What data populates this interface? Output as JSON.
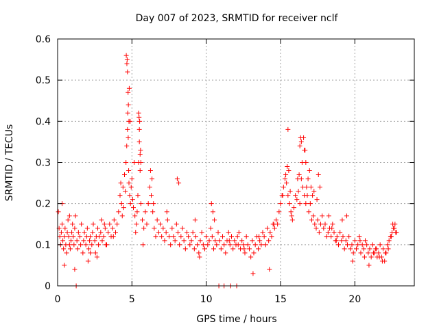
{
  "chart_data": {
    "type": "scatter",
    "title": "Day 007 of 2023, SRMTID for receiver nclf",
    "xlabel": "GPS time / hours",
    "ylabel": "SRMTID / TECUs",
    "xlim": [
      0,
      24
    ],
    "ylim": [
      0,
      0.6
    ],
    "xticks": [
      0,
      5,
      10,
      15,
      20
    ],
    "xtick_labels": [
      "0",
      "5",
      "10",
      "15",
      "20"
    ],
    "yticks": [
      0,
      0.1,
      0.2,
      0.3,
      0.4,
      0.5,
      0.6
    ],
    "ytick_labels": [
      "0",
      "0.1",
      "0.2",
      "0.3",
      "0.4",
      "0.5",
      "0.6"
    ],
    "grid": true,
    "marker": "+",
    "series": [
      {
        "name": "SRMTID",
        "color": "#ff0000",
        "x": [
          0.05,
          0.1,
          0.15,
          0.2,
          0.25,
          0.3,
          0.35,
          0.4,
          0.45,
          0.5,
          0.55,
          0.6,
          0.65,
          0.7,
          0.75,
          0.8,
          0.85,
          0.9,
          0.95,
          1.0,
          1.05,
          1.1,
          1.15,
          1.2,
          1.3,
          1.35,
          1.4,
          1.5,
          1.55,
          1.6,
          1.7,
          1.75,
          1.8,
          1.9,
          1.95,
          2.0,
          2.1,
          2.15,
          2.2,
          2.3,
          2.35,
          2.4,
          2.5,
          2.55,
          2.6,
          2.7,
          2.75,
          2.8,
          2.9,
          2.95,
          3.0,
          3.1,
          3.2,
          3.3,
          3.4,
          3.5,
          3.6,
          3.7,
          3.8,
          3.9,
          4.0,
          4.1,
          4.2,
          4.25,
          4.3,
          4.4,
          4.5,
          4.55,
          4.6,
          4.65,
          4.7,
          4.72,
          4.75,
          4.78,
          4.8,
          4.85,
          4.9,
          4.95,
          5.0,
          5.05,
          5.1,
          5.2,
          5.3,
          5.35,
          5.4,
          5.45,
          5.5,
          5.55,
          5.6,
          5.7,
          5.8,
          5.9,
          6.0,
          6.1,
          6.2,
          6.3,
          6.4,
          6.5,
          6.6,
          6.7,
          6.8,
          6.9,
          7.0,
          7.1,
          7.2,
          7.3,
          7.4,
          7.5,
          7.6,
          7.7,
          7.8,
          7.9,
          8.0,
          8.1,
          8.2,
          8.3,
          8.4,
          8.5,
          8.6,
          8.7,
          8.8,
          8.9,
          9.0,
          9.1,
          9.2,
          9.3,
          9.4,
          9.5,
          9.6,
          9.7,
          9.8,
          9.9,
          10.0,
          10.1,
          10.2,
          10.3,
          10.4,
          10.5,
          10.6,
          10.7,
          10.8,
          10.9,
          11.0,
          11.1,
          11.2,
          11.3,
          11.4,
          11.5,
          11.6,
          11.7,
          11.8,
          11.9,
          12.0,
          12.1,
          12.2,
          12.3,
          12.4,
          12.5,
          12.6,
          12.7,
          12.8,
          12.9,
          13.0,
          13.1,
          13.2,
          13.3,
          13.4,
          13.5,
          13.6,
          13.7,
          13.8,
          13.9,
          14.0,
          14.1,
          14.2,
          14.3,
          14.4,
          14.5,
          14.6,
          14.7,
          14.8,
          14.9,
          15.0,
          15.1,
          15.2,
          15.3,
          15.4,
          15.5,
          15.6,
          15.7,
          15.8,
          15.9,
          16.0,
          16.1,
          16.2,
          16.3,
          16.4,
          16.5,
          16.6,
          16.7,
          16.8,
          16.9,
          17.0,
          17.1,
          17.2,
          17.3,
          17.4,
          17.5,
          17.6,
          17.7,
          17.8,
          17.9,
          18.0,
          18.1,
          18.2,
          18.3,
          18.4,
          18.5,
          18.6,
          18.7,
          18.8,
          18.9,
          19.0,
          19.1,
          19.2,
          19.3,
          19.4,
          19.5,
          19.6,
          19.7,
          19.8,
          19.9,
          20.0,
          20.1,
          20.2,
          20.3,
          20.4,
          20.5,
          20.6,
          20.7,
          20.8,
          20.9,
          21.0,
          21.1,
          21.2,
          21.3,
          21.4,
          21.5,
          21.6,
          21.7,
          21.8,
          21.9,
          22.0,
          22.1,
          22.2,
          22.3,
          22.4,
          22.5,
          22.6,
          22.7,
          22.8,
          0.3,
          0.8,
          1.25,
          2.05,
          2.65,
          3.25,
          3.75,
          4.35,
          4.45,
          4.68,
          4.82,
          4.88,
          5.15,
          5.25,
          5.48,
          5.52,
          5.58,
          5.75,
          6.25,
          6.35,
          6.45,
          7.35,
          8.05,
          8.15,
          9.25,
          10.35,
          10.45,
          10.55,
          11.55,
          12.15,
          12.55,
          13.55,
          14.55,
          15.15,
          15.35,
          15.45,
          15.65,
          15.75,
          16.15,
          16.25,
          16.45,
          16.55,
          16.65,
          16.75,
          16.85,
          16.95,
          17.05,
          17.15,
          17.25,
          17.45,
          17.55,
          17.65,
          18.25,
          18.45,
          18.75,
          19.15,
          19.45,
          20.35,
          21.25,
          21.45,
          21.65,
          21.85,
          22.05,
          22.25,
          22.45,
          22.55,
          22.65,
          22.75,
          0.45,
          1.15,
          11.2,
          10.85,
          11.65,
          12.05,
          3.15,
          13.15,
          14.25,
          19.85,
          20.65,
          4.62,
          4.66,
          4.7,
          4.74,
          4.76,
          4.8,
          5.45,
          5.5,
          5.55,
          5.6,
          16.3,
          16.35,
          16.4,
          15.5,
          15.55,
          16.6,
          16.7,
          2.2,
          9.55,
          20.95
        ],
        "y": [
          0.18,
          0.14,
          0.12,
          0.1,
          0.13,
          0.15,
          0.11,
          0.09,
          0.12,
          0.14,
          0.1,
          0.08,
          0.13,
          0.16,
          0.12,
          0.1,
          0.09,
          0.11,
          0.13,
          0.15,
          0.12,
          0.1,
          0.14,
          0.17,
          0.11,
          0.09,
          0.13,
          0.12,
          0.1,
          0.15,
          0.08,
          0.11,
          0.13,
          0.1,
          0.12,
          0.14,
          0.09,
          0.11,
          0.12,
          0.1,
          0.13,
          0.15,
          0.11,
          0.08,
          0.12,
          0.14,
          0.1,
          0.12,
          0.13,
          0.16,
          0.11,
          0.12,
          0.14,
          0.1,
          0.13,
          0.15,
          0.12,
          0.14,
          0.16,
          0.13,
          0.15,
          0.18,
          0.22,
          0.25,
          0.2,
          0.24,
          0.27,
          0.23,
          0.3,
          0.34,
          0.38,
          0.42,
          0.36,
          0.28,
          0.25,
          0.22,
          0.2,
          0.24,
          0.26,
          0.21,
          0.19,
          0.17,
          0.15,
          0.18,
          0.22,
          0.3,
          0.35,
          0.28,
          0.2,
          0.16,
          0.14,
          0.18,
          0.15,
          0.2,
          0.24,
          0.22,
          0.18,
          0.14,
          0.12,
          0.16,
          0.13,
          0.15,
          0.12,
          0.14,
          0.11,
          0.13,
          0.16,
          0.12,
          0.1,
          0.14,
          0.12,
          0.11,
          0.15,
          0.13,
          0.1,
          0.12,
          0.14,
          0.11,
          0.09,
          0.13,
          0.12,
          0.1,
          0.11,
          0.13,
          0.09,
          0.12,
          0.1,
          0.08,
          0.11,
          0.13,
          0.1,
          0.09,
          0.12,
          0.1,
          0.11,
          0.14,
          0.12,
          0.09,
          0.11,
          0.1,
          0.13,
          0.11,
          0.09,
          0.12,
          0.1,
          0.08,
          0.11,
          0.13,
          0.1,
          0.12,
          0.09,
          0.11,
          0.1,
          0.12,
          0.13,
          0.09,
          0.11,
          0.1,
          0.08,
          0.12,
          0.1,
          0.09,
          0.07,
          0.11,
          0.08,
          0.1,
          0.12,
          0.09,
          0.11,
          0.1,
          0.13,
          0.12,
          0.1,
          0.14,
          0.11,
          0.13,
          0.12,
          0.15,
          0.14,
          0.16,
          0.15,
          0.18,
          0.2,
          0.22,
          0.24,
          0.26,
          0.25,
          0.22,
          0.2,
          0.18,
          0.16,
          0.19,
          0.22,
          0.21,
          0.23,
          0.2,
          0.26,
          0.24,
          0.22,
          0.2,
          0.22,
          0.18,
          0.2,
          0.16,
          0.17,
          0.15,
          0.14,
          0.16,
          0.13,
          0.15,
          0.17,
          0.14,
          0.15,
          0.12,
          0.13,
          0.14,
          0.12,
          0.15,
          0.13,
          0.11,
          0.12,
          0.1,
          0.13,
          0.11,
          0.12,
          0.09,
          0.11,
          0.1,
          0.12,
          0.09,
          0.1,
          0.08,
          0.11,
          0.09,
          0.1,
          0.12,
          0.08,
          0.1,
          0.09,
          0.11,
          0.1,
          0.08,
          0.09,
          0.07,
          0.1,
          0.08,
          0.09,
          0.07,
          0.08,
          0.1,
          0.07,
          0.09,
          0.06,
          0.08,
          0.1,
          0.11,
          0.12,
          0.13,
          0.14,
          0.15,
          0.13,
          0.2,
          0.17,
          0.0,
          0.06,
          0.07,
          0.1,
          0.12,
          0.17,
          0.19,
          0.55,
          0.48,
          0.4,
          0.3,
          0.13,
          0.41,
          0.4,
          0.33,
          0.1,
          0.28,
          0.26,
          0.2,
          0.18,
          0.26,
          0.25,
          0.16,
          0.2,
          0.18,
          0.16,
          0.11,
          0.1,
          0.09,
          0.12,
          0.15,
          0.22,
          0.27,
          0.29,
          0.23,
          0.17,
          0.26,
          0.27,
          0.3,
          0.36,
          0.33,
          0.24,
          0.26,
          0.28,
          0.24,
          0.22,
          0.23,
          0.21,
          0.27,
          0.24,
          0.17,
          0.14,
          0.11,
          0.16,
          0.17,
          0.11,
          0.08,
          0.09,
          0.07,
          0.06,
          0.08,
          0.09,
          0.12,
          0.15,
          0.14,
          0.13,
          0.05,
          0.04,
          0.0,
          0.0,
          0.0,
          0.0,
          0.15,
          0.03,
          0.04,
          0.06,
          0.07,
          0.56,
          0.54,
          0.52,
          0.47,
          0.44,
          0.4,
          0.42,
          0.38,
          0.32,
          0.3,
          0.34,
          0.36,
          0.35,
          0.38,
          0.28,
          0.33,
          0.3,
          0.08,
          0.07,
          0.05
        ]
      }
    ]
  }
}
